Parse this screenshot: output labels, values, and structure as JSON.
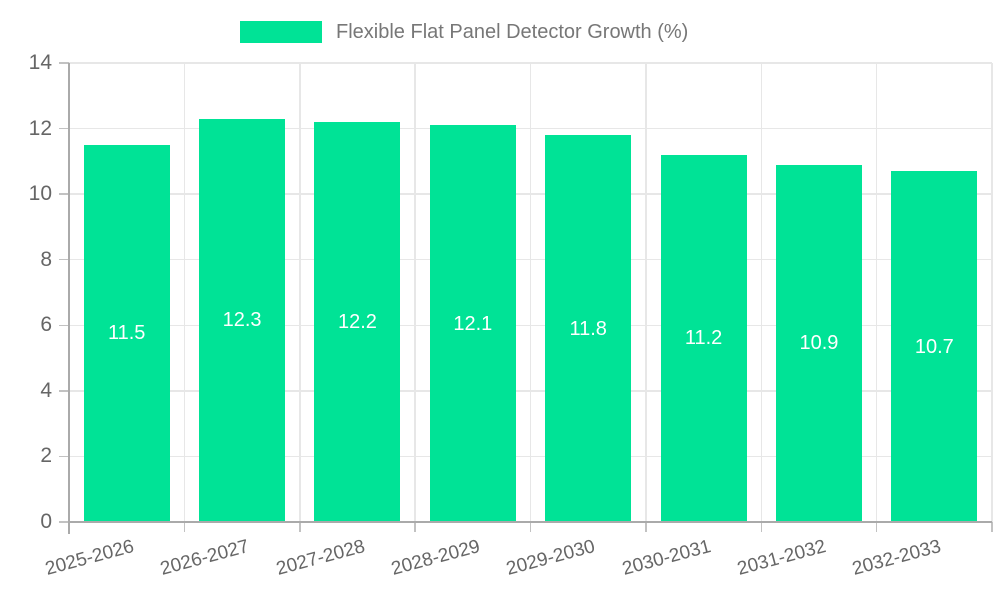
{
  "chart_data": {
    "type": "bar",
    "title": "",
    "legend": {
      "label": "Flexible Flat Panel Detector Growth (%)",
      "position": "top"
    },
    "categories": [
      "2025-2026",
      "2026-2027",
      "2027-2028",
      "2028-2029",
      "2029-2030",
      "2030-2031",
      "2031-2032",
      "2032-2033"
    ],
    "series": [
      {
        "name": "Flexible Flat Panel Detector Growth (%)",
        "values": [
          11.5,
          12.3,
          12.2,
          12.1,
          11.8,
          11.2,
          10.9,
          10.7
        ],
        "value_labels": [
          "11.5",
          "12.3",
          "12.2",
          "12.1",
          "11.8",
          "11.2",
          "10.9",
          "10.7"
        ]
      }
    ],
    "xlabel": "",
    "ylabel": "",
    "ylim": [
      0,
      14
    ],
    "yticks": [
      "0",
      "2",
      "4",
      "6",
      "8",
      "10",
      "12",
      "14"
    ],
    "grid": true,
    "legend_position": "top",
    "colors": {
      "bar": "#00E396",
      "value_label": "#ffffff",
      "axis_text": "#666666",
      "legend_text": "#777777",
      "gridline": "#e7e7e7",
      "axis_line": "#aaaaaa",
      "tick": "#c2c2c2",
      "background": "#ffffff"
    }
  }
}
